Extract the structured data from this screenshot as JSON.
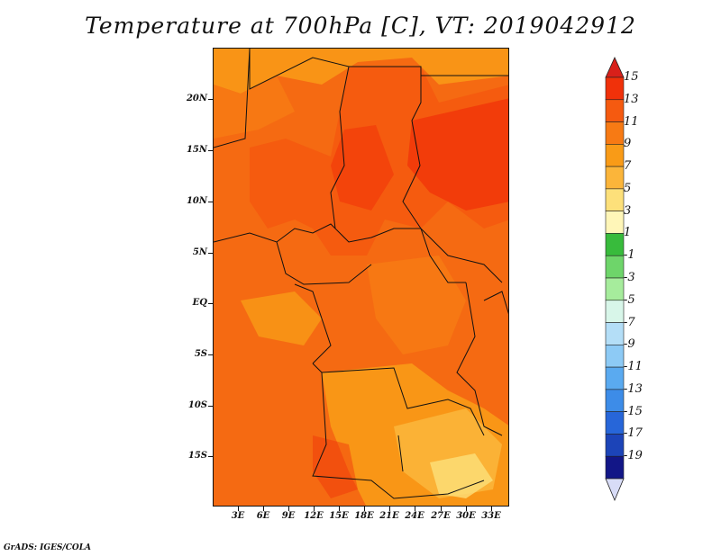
{
  "title": "Temperature at 700hPa [C], VT: 2019042912",
  "credit": "GrADS: IGES/COLA",
  "lat_ticks": [
    "20N",
    "15N",
    "10N",
    "5N",
    "EQ",
    "5S",
    "10S",
    "15S"
  ],
  "lon_ticks": [
    "3E",
    "6E",
    "9E",
    "12E",
    "15E",
    "18E",
    "21E",
    "24E",
    "27E",
    "30E",
    "33E"
  ],
  "colorbar": {
    "labels": [
      "15",
      "13",
      "11",
      "9",
      "7",
      "5",
      "3",
      "1",
      "-1",
      "-3",
      "-5",
      "-7",
      "-9",
      "-11",
      "-13",
      "-15",
      "-17",
      "-19"
    ],
    "colors": [
      "#f0310a",
      "#f55a10",
      "#f77a14",
      "#f99b17",
      "#fbb53a",
      "#fde07a",
      "#fff6b8",
      "#38bb3c",
      "#6ed56a",
      "#a6ec9c",
      "#d8f6e9",
      "#b4def7",
      "#8dcaf5",
      "#5aaaf0",
      "#3d8ce8",
      "#2766d9",
      "#1c44b8",
      "#121687"
    ],
    "over_color": "#d8201a",
    "under_color": "#d8dcf7"
  },
  "colors": {
    "border": "#111111",
    "background": "#ffffff"
  }
}
